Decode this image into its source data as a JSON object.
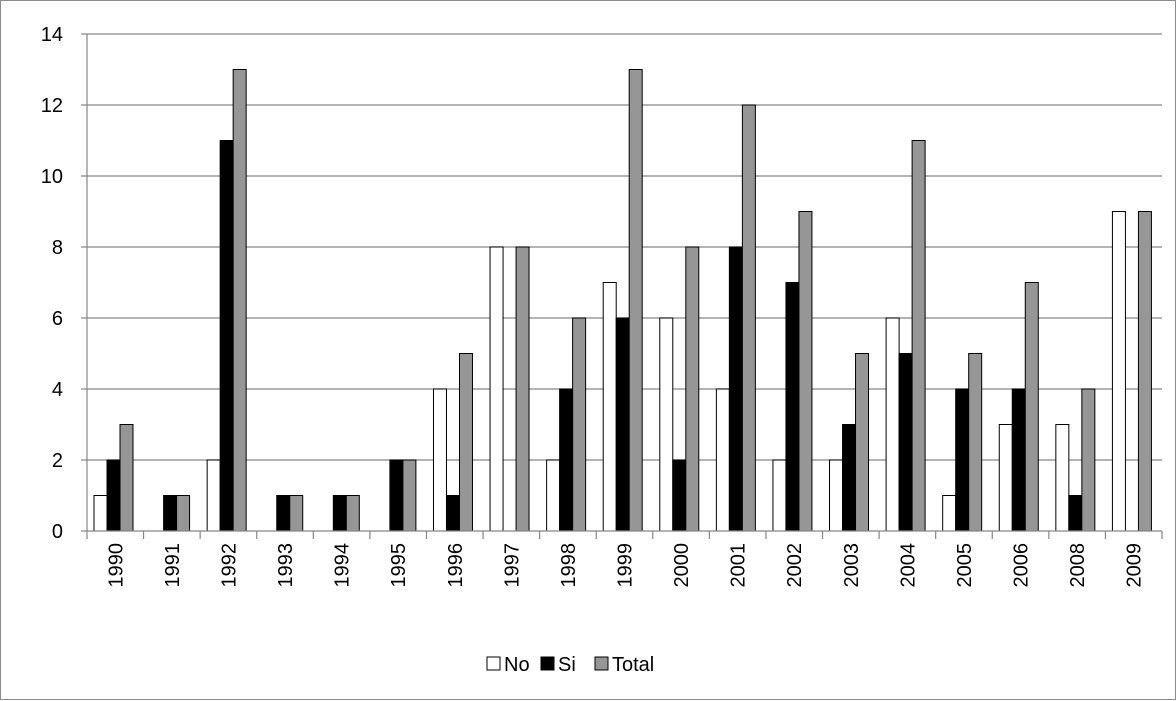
{
  "chart_data": {
    "type": "bar",
    "title": "",
    "xlabel": "",
    "ylabel": "",
    "categories": [
      "1990",
      "1991",
      "1992",
      "1993",
      "1994",
      "1995",
      "1996",
      "1997",
      "1998",
      "1999",
      "2000",
      "2001",
      "2002",
      "2003",
      "2004",
      "2005",
      "2006",
      "2008",
      "2009"
    ],
    "series": [
      {
        "name": "No",
        "color": "#ffffff",
        "values": [
          1,
          0,
          2,
          0,
          0,
          0,
          4,
          8,
          2,
          7,
          6,
          4,
          2,
          2,
          6,
          1,
          3,
          3,
          9
        ]
      },
      {
        "name": "Si",
        "color": "#000000",
        "values": [
          2,
          1,
          11,
          1,
          1,
          2,
          1,
          0,
          4,
          6,
          2,
          8,
          7,
          3,
          5,
          4,
          4,
          1,
          0
        ]
      },
      {
        "name": "Total",
        "color": "#969696",
        "values": [
          3,
          1,
          13,
          1,
          1,
          2,
          5,
          8,
          6,
          13,
          8,
          12,
          9,
          5,
          11,
          5,
          7,
          4,
          9
        ]
      }
    ],
    "ylim": [
      0,
      14
    ],
    "yticks": [
      0,
      2,
      4,
      6,
      8,
      10,
      12,
      14
    ],
    "grid": true,
    "legend_position": "bottom"
  }
}
